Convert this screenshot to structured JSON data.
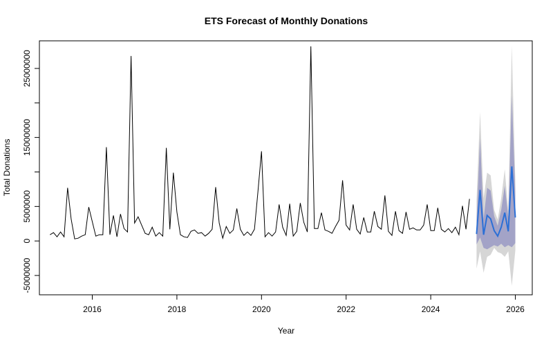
{
  "chart_data": {
    "type": "line",
    "title": "ETS Forecast of Monthly Donations",
    "xlabel": "Year",
    "ylabel": "Total Donations",
    "xlim": [
      2014.75,
      2026.4
    ],
    "ylim": [
      -7800000,
      29000000
    ],
    "grid": false,
    "x_ticks": [
      2016,
      2018,
      2020,
      2022,
      2024,
      2026
    ],
    "x_tick_labels": [
      "2016",
      "2018",
      "2020",
      "2022",
      "2024",
      "2026"
    ],
    "y_ticks": [
      -5000000,
      0,
      5000000,
      10000000,
      15000000,
      20000000,
      25000000
    ],
    "y_tick_labels": [
      "-5000000",
      "0",
      "5000000",
      "",
      "15000000",
      "",
      "25000000"
    ],
    "colors": {
      "history": "#000000",
      "forecast": "#2b6fd6",
      "band95": "#d6d6d6",
      "band80": "#a3a3c7"
    },
    "series": [
      {
        "role": "history",
        "x_start": 2015,
        "step_months": 1,
        "values": [
          900000,
          1200000,
          600000,
          1300000,
          600000,
          7700000,
          3200000,
          300000,
          400000,
          700000,
          900000,
          4900000,
          2800000,
          700000,
          900000,
          900000,
          13600000,
          900000,
          3700000,
          600000,
          3900000,
          1800000,
          1300000,
          26800000,
          2600000,
          3500000,
          2300000,
          1100000,
          900000,
          2000000,
          700000,
          1200000,
          700000,
          13500000,
          1700000,
          9900000,
          4200000,
          900000,
          600000,
          500000,
          1400000,
          1600000,
          1100000,
          1200000,
          700000,
          1100000,
          1700000,
          7800000,
          2600000,
          400000,
          2100000,
          1100000,
          1600000,
          4700000,
          1700000,
          800000,
          1300000,
          800000,
          1700000,
          7200000,
          13000000,
          600000,
          1200000,
          700000,
          1300000,
          5300000,
          2000000,
          800000,
          5400000,
          700000,
          1400000,
          5500000,
          2700000,
          1300000,
          28200000,
          1800000,
          1800000,
          4100000,
          1600000,
          1400000,
          1100000,
          2100000,
          3000000,
          8800000,
          2300000,
          1600000,
          5300000,
          1700000,
          1000000,
          3400000,
          1300000,
          1300000,
          4300000,
          2100000,
          1700000,
          6600000,
          1400000,
          800000,
          4300000,
          1500000,
          1100000,
          4200000,
          1700000,
          1900000,
          1600000,
          1600000,
          2300000,
          5300000,
          1500000,
          1500000,
          4800000,
          1700000,
          1300000,
          1800000,
          1200000,
          2000000,
          900000,
          5100000,
          1700000,
          6100000
        ]
      },
      {
        "role": "forecast",
        "x_start": 2025.0833,
        "step_months": 1,
        "values": [
          1000000,
          7400000,
          900000,
          3700000,
          3200000,
          1500000,
          700000,
          2000000,
          4100000,
          1400000,
          10800000,
          3400000
        ],
        "lo80": [
          -500000,
          500000,
          -1000000,
          -1200000,
          -900000,
          -600000,
          -800000,
          -400000,
          -900000,
          -600000,
          -900000,
          -300000
        ],
        "hi80": [
          3000000,
          14900000,
          3200000,
          7700000,
          7300000,
          3600000,
          2200000,
          4500000,
          8000000,
          3500000,
          21100000,
          7100000
        ],
        "lo95": [
          -4000000,
          -1500000,
          -4600000,
          -2300000,
          -2000000,
          -1000000,
          -1600000,
          -1800000,
          -2300000,
          -1500000,
          -6500000,
          -1400000
        ],
        "hi95": [
          6000000,
          18700000,
          6200000,
          9900000,
          9500000,
          4500000,
          3100000,
          6200000,
          10400000,
          4400000,
          28300000,
          8700000
        ]
      }
    ]
  }
}
